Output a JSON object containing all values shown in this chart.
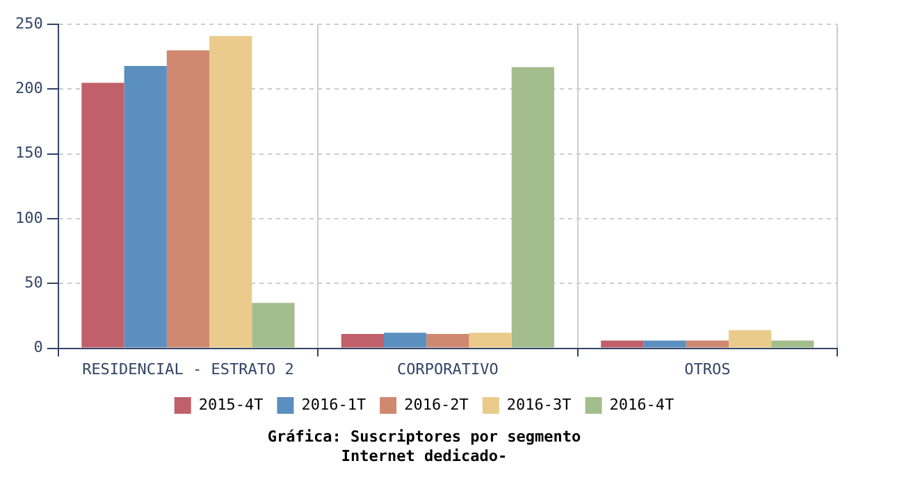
{
  "chart_data": {
    "type": "bar",
    "title": "Gráfica: Suscriptores por segmento",
    "subtitle": "Internet dedicado-",
    "categories": [
      "RESIDENCIAL - ESTRATO 2",
      "CORPORATIVO",
      "OTROS"
    ],
    "series": [
      {
        "name": "2015-4T",
        "color": "#c0606a",
        "values": [
          205,
          11,
          6
        ]
      },
      {
        "name": "2016-1T",
        "color": "#5b8fbf",
        "values": [
          218,
          12,
          6
        ]
      },
      {
        "name": "2016-2T",
        "color": "#d08870",
        "values": [
          230,
          11,
          6
        ]
      },
      {
        "name": "2016-3T",
        "color": "#ebcb8b",
        "values": [
          241,
          12,
          14
        ]
      },
      {
        "name": "2016-4T",
        "color": "#a3bd8c",
        "values": [
          35,
          217,
          6
        ]
      }
    ],
    "ylim": [
      0,
      250
    ],
    "yticks": [
      0,
      50,
      100,
      150,
      200,
      250
    ],
    "grid": true,
    "legend": "bottom"
  }
}
